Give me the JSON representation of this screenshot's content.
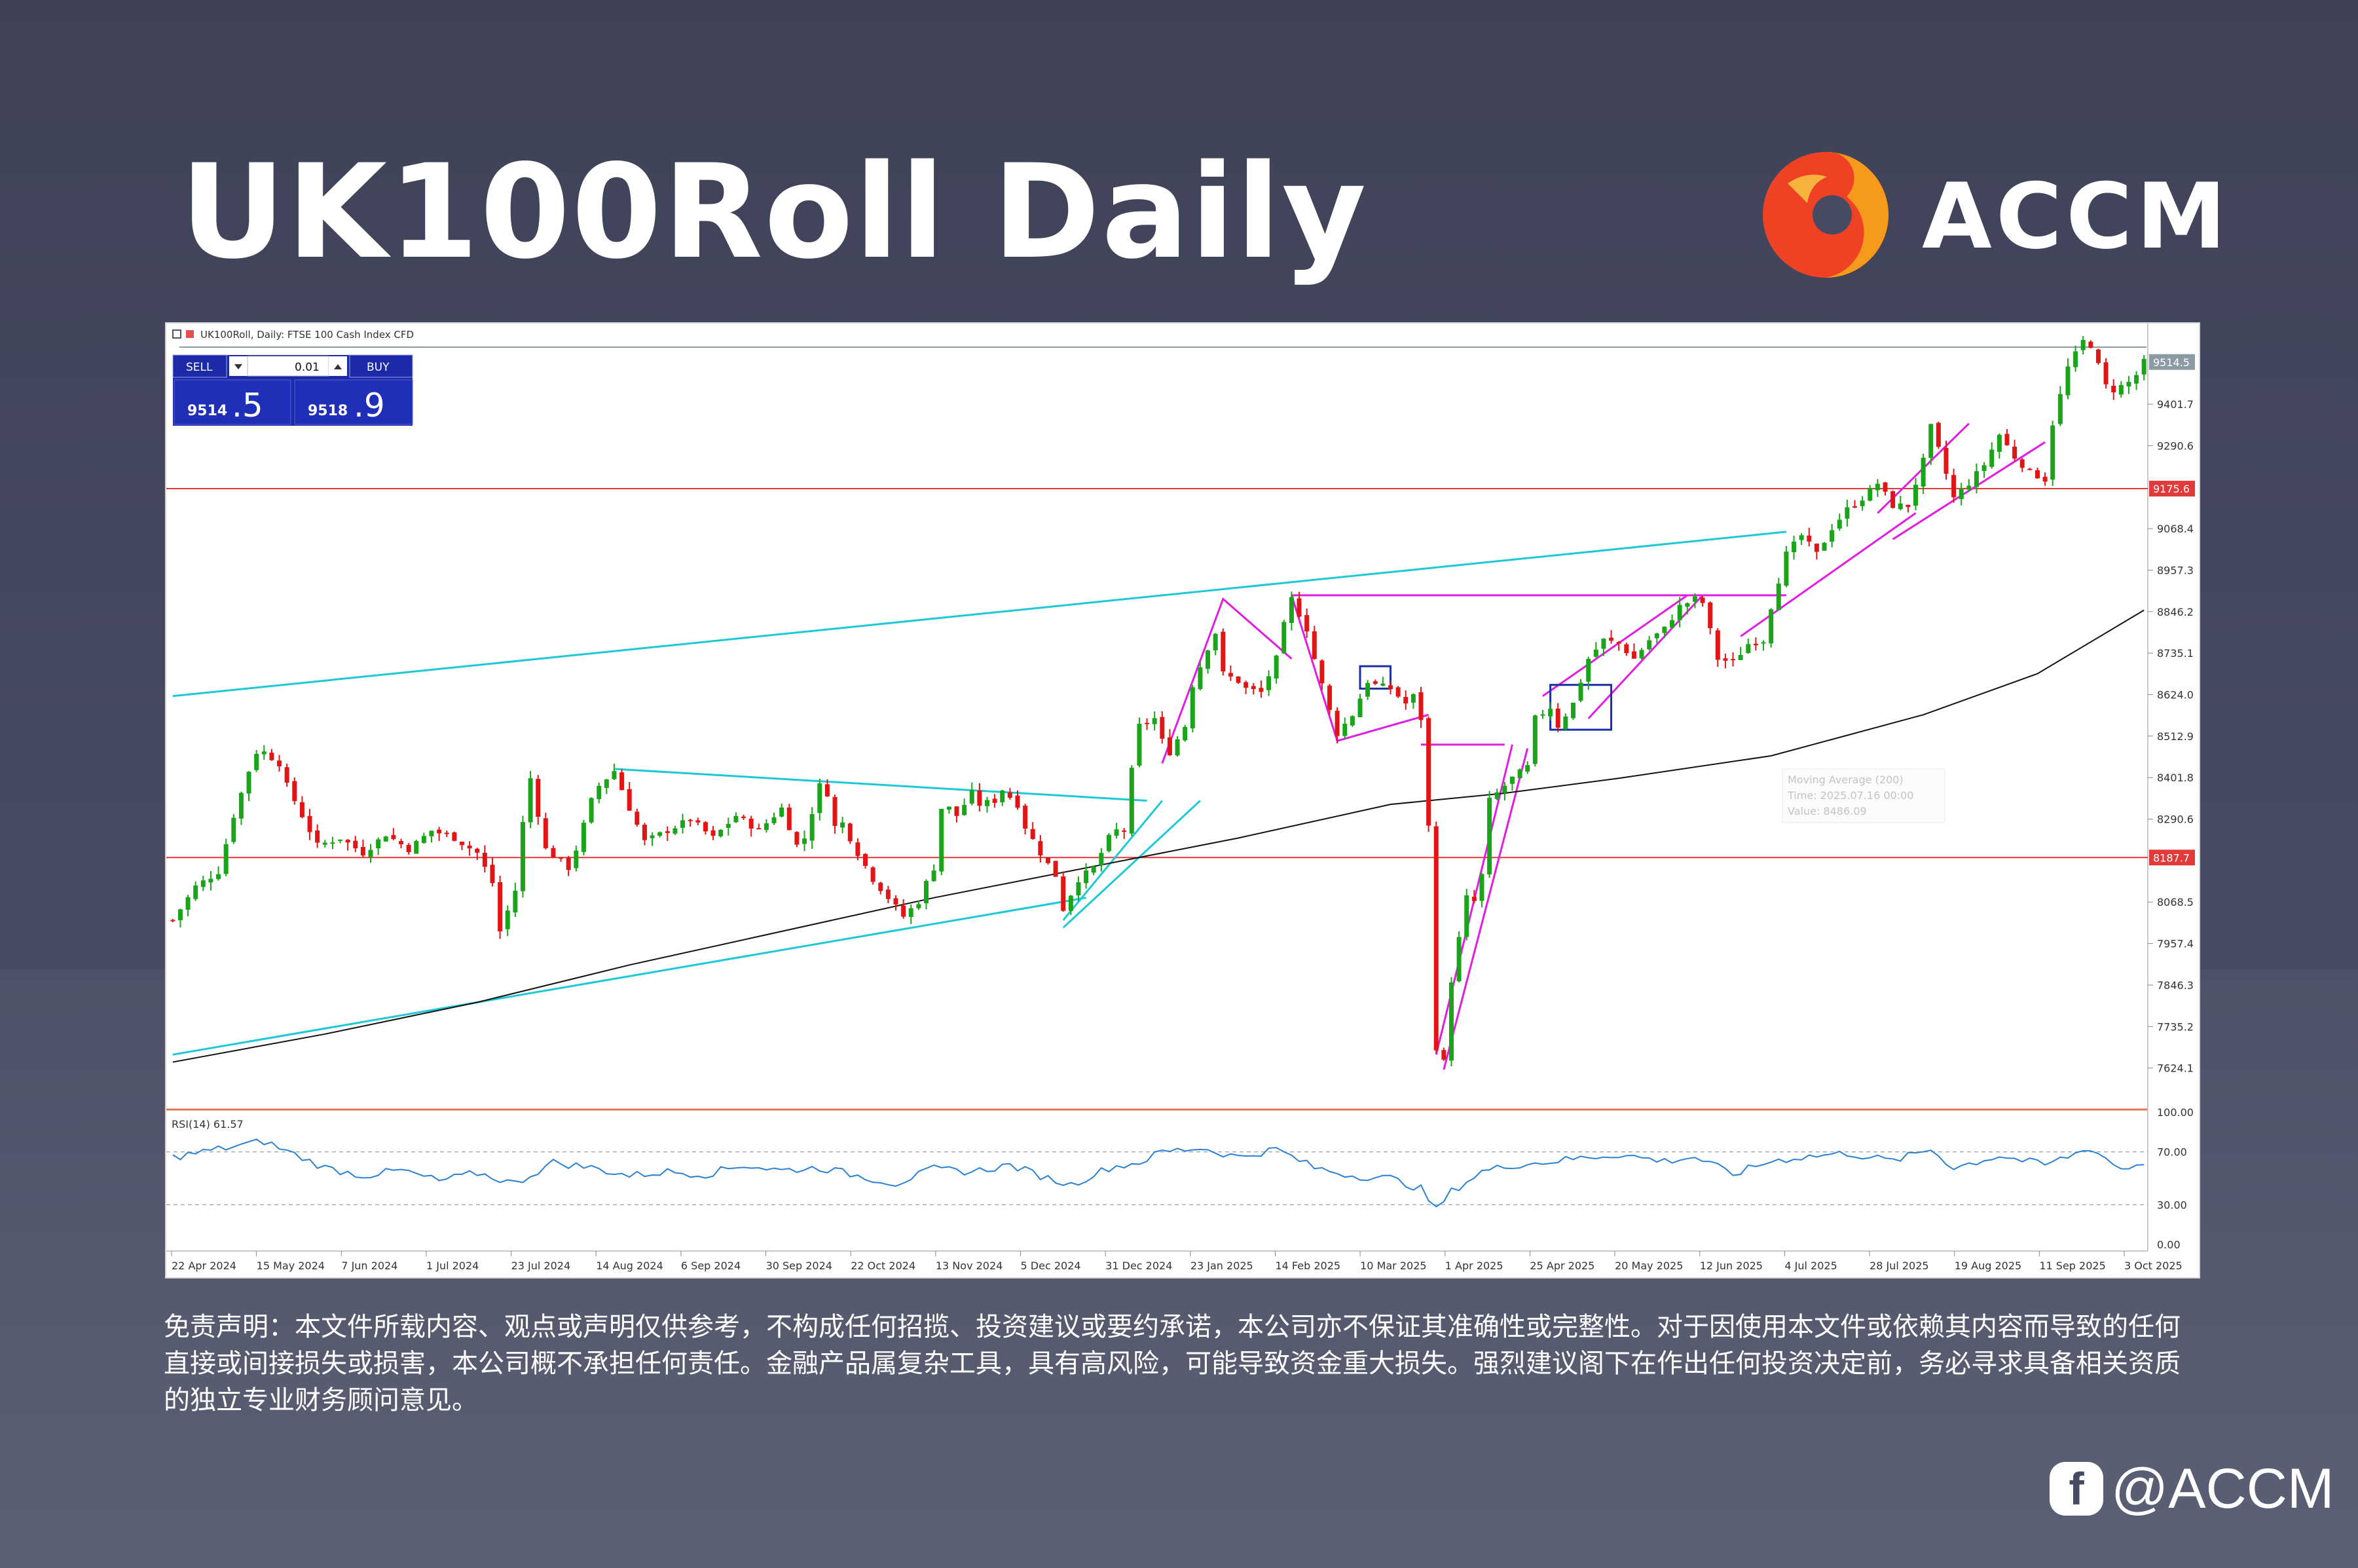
{
  "header": {
    "title": "UK100Roll Daily",
    "brand": "ACCM"
  },
  "chart_window": {
    "info_line": "UK100Roll, Daily: FTSE 100 Cash Index CFD",
    "trade_panel": {
      "sell_label": "SELL",
      "buy_label": "BUY",
      "lot_value": "0.01",
      "sell_price_main": "9514",
      "sell_price_big": ".5",
      "buy_price_main": "9518",
      "buy_price_big": ".9"
    },
    "ma_tooltip": {
      "line1": "Moving Average (200)",
      "line2": "Time: 2025.07.16 00:00",
      "line3": "Value: 8486.09"
    },
    "rsi_label": "RSI(14) 61.57"
  },
  "chart_data": {
    "type": "line",
    "title": "UK100Roll Daily",
    "symbol": "UK100Roll",
    "timeframe": "Daily",
    "x_ticks": [
      "22 Apr 2024",
      "15 May 2024",
      "7 Jun 2024",
      "1 Jul 2024",
      "23 Jul 2024",
      "14 Aug 2024",
      "6 Sep 2024",
      "30 Sep 2024",
      "22 Oct 2024",
      "13 Nov 2024",
      "5 Dec 2024",
      "31 Dec 2024",
      "23 Jan 2025",
      "14 Feb 2025",
      "10 Mar 2025",
      "1 Apr 2025",
      "25 Apr 2025",
      "20 May 2025",
      "12 Jun 2025",
      "4 Jul 2025",
      "28 Jul 2025",
      "19 Aug 2025",
      "11 Sep 2025",
      "3 Oct 2025"
    ],
    "y_ticks": [
      "9401.7",
      "9290.6",
      "9068.4",
      "8957.3",
      "8846.2",
      "8735.1",
      "8624.0",
      "8512.9",
      "8401.8",
      "8290.6",
      "8068.5",
      "7957.4",
      "7846.3",
      "7735.2",
      "7624.1"
    ],
    "ylim": [
      7520,
      9600
    ],
    "price_labels": {
      "current": "9514.5",
      "resistance": "9175.6",
      "support": "8187.7"
    },
    "horizontal_lines": [
      9514.5,
      9175.6,
      8187.7
    ],
    "price_path": [
      [
        0,
        8020
      ],
      [
        3,
        8110
      ],
      [
        6,
        8150
      ],
      [
        8,
        8300
      ],
      [
        10,
        8420
      ],
      [
        11,
        8470
      ],
      [
        12,
        8470
      ],
      [
        14,
        8440
      ],
      [
        15,
        8380
      ],
      [
        17,
        8300
      ],
      [
        19,
        8220
      ],
      [
        22,
        8240
      ],
      [
        25,
        8200
      ],
      [
        28,
        8250
      ],
      [
        31,
        8210
      ],
      [
        34,
        8260
      ],
      [
        37,
        8240
      ],
      [
        40,
        8200
      ],
      [
        42,
        8120
      ],
      [
        43,
        7990
      ],
      [
        45,
        8100
      ],
      [
        46,
        8280
      ],
      [
        47,
        8400
      ],
      [
        49,
        8210
      ],
      [
        52,
        8160
      ],
      [
        53,
        8210
      ],
      [
        55,
        8340
      ],
      [
        56,
        8380
      ],
      [
        58,
        8420
      ],
      [
        60,
        8320
      ],
      [
        62,
        8230
      ],
      [
        65,
        8260
      ],
      [
        68,
        8290
      ],
      [
        71,
        8240
      ],
      [
        74,
        8300
      ],
      [
        77,
        8260
      ],
      [
        80,
        8320
      ],
      [
        82,
        8220
      ],
      [
        83,
        8240
      ],
      [
        85,
        8380
      ],
      [
        86,
        8360
      ],
      [
        87,
        8270
      ],
      [
        88,
        8280
      ],
      [
        90,
        8200
      ],
      [
        92,
        8130
      ],
      [
        94,
        8080
      ],
      [
        96,
        8030
      ],
      [
        98,
        8070
      ],
      [
        99,
        8120
      ],
      [
        100,
        8160
      ],
      [
        101,
        8320
      ],
      [
        102,
        8320
      ],
      [
        103,
        8300
      ],
      [
        105,
        8360
      ],
      [
        106,
        8330
      ],
      [
        108,
        8340
      ],
      [
        109,
        8370
      ],
      [
        111,
        8330
      ],
      [
        112,
        8270
      ],
      [
        114,
        8200
      ],
      [
        116,
        8140
      ],
      [
        117,
        8050
      ],
      [
        119,
        8130
      ],
      [
        121,
        8160
      ],
      [
        123,
        8240
      ],
      [
        124,
        8260
      ],
      [
        125,
        8260
      ],
      [
        126,
        8420
      ],
      [
        127,
        8540
      ],
      [
        129,
        8560
      ],
      [
        130,
        8500
      ],
      [
        131,
        8470
      ],
      [
        133,
        8540
      ],
      [
        134,
        8650
      ],
      [
        136,
        8750
      ],
      [
        137,
        8790
      ],
      [
        138,
        8680
      ],
      [
        140,
        8660
      ],
      [
        141,
        8640
      ],
      [
        143,
        8630
      ],
      [
        145,
        8720
      ],
      [
        146,
        8810
      ],
      [
        147,
        8880
      ],
      [
        149,
        8800
      ],
      [
        150,
        8720
      ],
      [
        152,
        8580
      ],
      [
        153,
        8520
      ],
      [
        155,
        8570
      ],
      [
        157,
        8660
      ],
      [
        158,
        8650
      ],
      [
        160,
        8640
      ],
      [
        162,
        8600
      ],
      [
        163,
        8620
      ],
      [
        164,
        8560
      ],
      [
        165,
        8270
      ],
      [
        166,
        7680
      ],
      [
        167,
        7640
      ],
      [
        168,
        7860
      ],
      [
        170,
        8080
      ],
      [
        171,
        8070
      ],
      [
        172,
        8140
      ],
      [
        173,
        8340
      ],
      [
        175,
        8380
      ],
      [
        176,
        8400
      ],
      [
        178,
        8430
      ],
      [
        179,
        8560
      ],
      [
        181,
        8590
      ],
      [
        182,
        8540
      ],
      [
        184,
        8600
      ],
      [
        186,
        8720
      ],
      [
        188,
        8770
      ],
      [
        190,
        8760
      ],
      [
        192,
        8720
      ],
      [
        194,
        8770
      ],
      [
        196,
        8800
      ],
      [
        198,
        8860
      ],
      [
        200,
        8880
      ],
      [
        201,
        8870
      ],
      [
        203,
        8720
      ],
      [
        205,
        8710
      ],
      [
        207,
        8760
      ],
      [
        209,
        8770
      ],
      [
        210,
        8860
      ],
      [
        212,
        9000
      ],
      [
        214,
        9050
      ],
      [
        216,
        9000
      ],
      [
        218,
        9070
      ],
      [
        220,
        9120
      ],
      [
        222,
        9150
      ],
      [
        224,
        9190
      ],
      [
        226,
        9130
      ],
      [
        228,
        9130
      ],
      [
        230,
        9250
      ],
      [
        231,
        9340
      ],
      [
        232,
        9280
      ],
      [
        234,
        9150
      ],
      [
        236,
        9190
      ],
      [
        238,
        9240
      ],
      [
        240,
        9320
      ],
      [
        242,
        9260
      ],
      [
        244,
        9220
      ],
      [
        246,
        9200
      ],
      [
        247,
        9350
      ],
      [
        249,
        9500
      ],
      [
        251,
        9570
      ],
      [
        252,
        9560
      ],
      [
        254,
        9450
      ],
      [
        255,
        9440
      ],
      [
        257,
        9460
      ],
      [
        258,
        9480
      ],
      [
        259,
        9514.5
      ]
    ],
    "ma200_path": [
      [
        0,
        7640
      ],
      [
        20,
        7715
      ],
      [
        40,
        7800
      ],
      [
        60,
        7900
      ],
      [
        80,
        7990
      ],
      [
        100,
        8080
      ],
      [
        120,
        8160
      ],
      [
        140,
        8240
      ],
      [
        160,
        8330
      ],
      [
        175,
        8360
      ],
      [
        190,
        8400
      ],
      [
        210,
        8460
      ],
      [
        230,
        8570
      ],
      [
        245,
        8680
      ],
      [
        259,
        8850
      ]
    ],
    "rsi_scale": [
      "100.00",
      "70.00",
      "30.00",
      "0.00"
    ],
    "rsi_levels": [
      30,
      70
    ],
    "rsi_path": [
      [
        0,
        66
      ],
      [
        8,
        74
      ],
      [
        12,
        78
      ],
      [
        16,
        68
      ],
      [
        20,
        58
      ],
      [
        25,
        52
      ],
      [
        30,
        56
      ],
      [
        35,
        48
      ],
      [
        40,
        54
      ],
      [
        45,
        46
      ],
      [
        50,
        62
      ],
      [
        55,
        58
      ],
      [
        60,
        52
      ],
      [
        65,
        55
      ],
      [
        70,
        53
      ],
      [
        75,
        60
      ],
      [
        80,
        56
      ],
      [
        85,
        58
      ],
      [
        90,
        52
      ],
      [
        95,
        46
      ],
      [
        100,
        57
      ],
      [
        105,
        55
      ],
      [
        110,
        60
      ],
      [
        115,
        50
      ],
      [
        118,
        45
      ],
      [
        123,
        58
      ],
      [
        127,
        62
      ],
      [
        130,
        70
      ],
      [
        135,
        73
      ],
      [
        140,
        66
      ],
      [
        145,
        72
      ],
      [
        150,
        58
      ],
      [
        155,
        52
      ],
      [
        160,
        50
      ],
      [
        164,
        42
      ],
      [
        166,
        26
      ],
      [
        168,
        40
      ],
      [
        172,
        55
      ],
      [
        176,
        60
      ],
      [
        180,
        62
      ],
      [
        186,
        66
      ],
      [
        190,
        68
      ],
      [
        196,
        63
      ],
      [
        200,
        66
      ],
      [
        205,
        53
      ],
      [
        210,
        63
      ],
      [
        214,
        66
      ],
      [
        220,
        69
      ],
      [
        226,
        63
      ],
      [
        231,
        72
      ],
      [
        234,
        58
      ],
      [
        240,
        67
      ],
      [
        246,
        60
      ],
      [
        252,
        73
      ],
      [
        256,
        57
      ],
      [
        259,
        61.57
      ]
    ],
    "rsi_current": "61.57",
    "ma_period": 200,
    "grid": false
  },
  "disclaimer": "免责声明：本文件所载内容、观点或声明仅供参考，不构成任何招揽、投资建议或要约承诺，本公司亦不保证其准确性或完整性。对于因使用本文件或依赖其内容而导致的任何直接或间接损失或损害，本公司概不承担任何责任。金融产品属复杂工具，具有高风险，可能导致资金重大损失。强烈建议阁下在作出任何投资决定前，务必寻求具备相关资质的独立专业财务顾问意见。",
  "social": {
    "handle": "@ACCM",
    "icon": "facebook-icon"
  },
  "colors": {
    "background": "#474b62",
    "bull": "#1aa41a",
    "bear": "#e01515",
    "cyan": "#1ec8d6",
    "magenta": "#e21de2",
    "level_red": "#e03a3a",
    "rsi": "#2a80d4"
  }
}
